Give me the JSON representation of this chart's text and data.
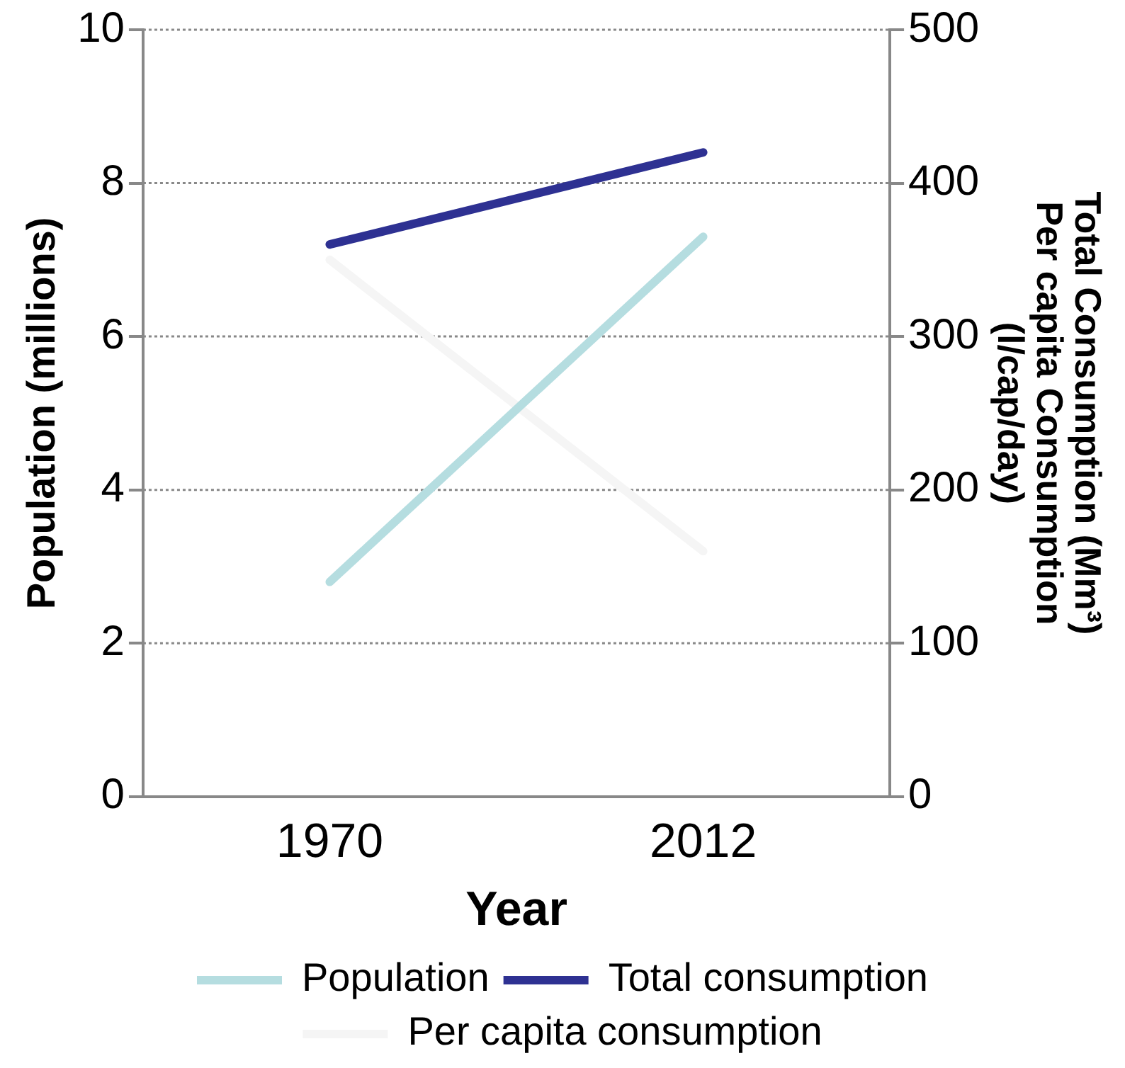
{
  "chart_data": {
    "type": "line",
    "xlabel": "Year",
    "ylabel": "Population (millions)",
    "y2label": "Total Consumption (Mm³)\nPer capita Consumption\n(l/cap/day)",
    "categories": [
      "1970",
      "2012"
    ],
    "series": [
      {
        "name": "Population",
        "color": "#b5dde0",
        "values": [
          2.8,
          7.3
        ]
      },
      {
        "name": "Total consumption",
        "color": "#2e3192",
        "values": [
          360,
          420
        ],
        "axis": "y2"
      },
      {
        "name": "Per capita consumption",
        "color": "#f5f5f5",
        "values": [
          350,
          160
        ],
        "axis": "y2"
      }
    ],
    "ylim": [
      0,
      10
    ],
    "yticks": [
      0,
      2,
      4,
      6,
      8,
      10
    ],
    "y2lim": [
      0,
      500
    ],
    "y2ticks": [
      0,
      100,
      200,
      300,
      400,
      500
    ],
    "grid": "y",
    "legend": "bottom",
    "marker": "none",
    "line_style": "solid"
  }
}
